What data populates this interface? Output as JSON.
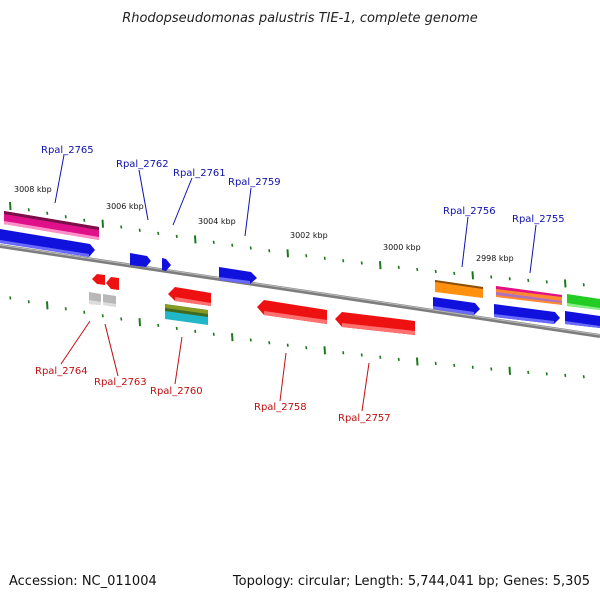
{
  "title": "Rhodopseudomonas palustris TIE-1, complete genome",
  "footer": {
    "accession": "Accession: NC_011004",
    "summary": "Topology: circular; Length: 5,744,041 bp; Genes: 5,305"
  },
  "scale_labels": [
    "3008 kbp",
    "3006 kbp",
    "3004 kbp",
    "3002 kbp",
    "3000 kbp",
    "2998 kbp"
  ],
  "colors": {
    "forward_label": "#1010b0",
    "reverse_label": "#c01010",
    "backbone": "#888888",
    "tick": "#1a7a1a"
  },
  "genes_forward": [
    {
      "name": "Rpal_2765"
    },
    {
      "name": "Rpal_2762"
    },
    {
      "name": "Rpal_2761"
    },
    {
      "name": "Rpal_2759"
    },
    {
      "name": "Rpal_2756"
    },
    {
      "name": "Rpal_2755"
    }
  ],
  "genes_reverse": [
    {
      "name": "Rpal_2764"
    },
    {
      "name": "Rpal_2763"
    },
    {
      "name": "Rpal_2760"
    },
    {
      "name": "Rpal_2758"
    },
    {
      "name": "Rpal_2757"
    }
  ]
}
